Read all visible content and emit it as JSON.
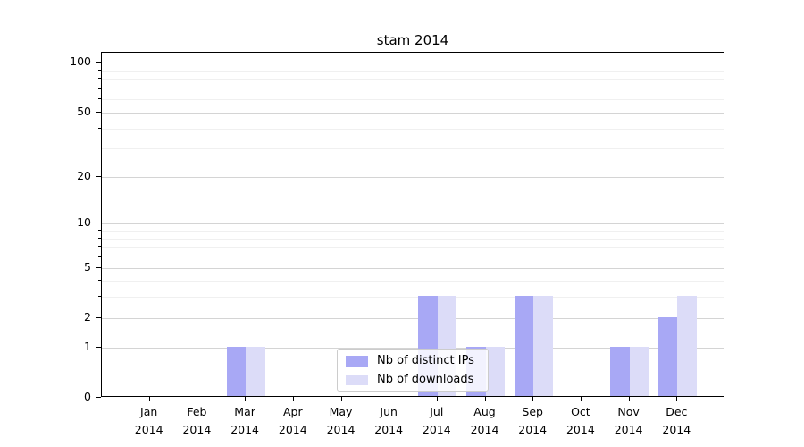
{
  "title": "stam 2014",
  "chart_data": {
    "type": "bar",
    "title": "stam 2014",
    "categories": [
      "Jan 2014",
      "Feb 2014",
      "Mar 2014",
      "Apr 2014",
      "May 2014",
      "Jun 2014",
      "Jul 2014",
      "Aug 2014",
      "Sep 2014",
      "Oct 2014",
      "Nov 2014",
      "Dec 2014"
    ],
    "series": [
      {
        "name": "Nb of distinct IPs",
        "color": "#a8a8f5",
        "values": [
          0,
          0,
          1,
          0,
          0,
          0,
          3,
          1,
          3,
          0,
          1,
          2
        ]
      },
      {
        "name": "Nb of downloads",
        "color": "#dcdcf8",
        "values": [
          0,
          0,
          1,
          0,
          0,
          0,
          3,
          1,
          3,
          0,
          1,
          3
        ]
      }
    ],
    "xlabel": "",
    "ylabel": "",
    "y_scale": "log1p",
    "y_ticks": [
      0,
      1,
      2,
      5,
      10,
      20,
      50,
      100
    ],
    "y_minor_gridlines": [
      3,
      4,
      6,
      7,
      8,
      9,
      30,
      40,
      60,
      70,
      80,
      90
    ],
    "ylim": [
      0,
      115
    ],
    "grid": "horizontal-both",
    "legend_position": "lower center"
  },
  "colors": {
    "grid_major": "#d4d4d4",
    "grid_minor": "#f0f0f0",
    "spine": "#000000",
    "background": "#ffffff"
  }
}
